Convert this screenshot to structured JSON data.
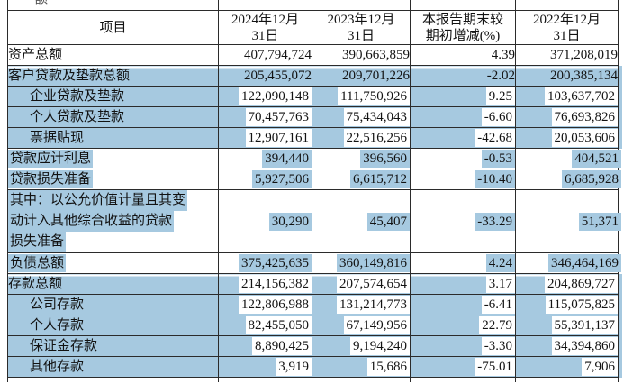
{
  "colors": {
    "highlight": "#a6c9e0",
    "border": "#2b2b2b",
    "text": "#121212"
  },
  "top_fragment": "额",
  "header": {
    "item_col": "项目",
    "col_2024": "2024年12月\n31日",
    "col_2023": "2023年12月\n31日",
    "col_change": "本报告期末较\n期初增减(%)",
    "col_2022": "2022年12月\n31日"
  },
  "table": {
    "rows": [
      {
        "label": "资产总额",
        "indent": 0,
        "style": "plain",
        "values": [
          "407,794,724",
          "390,663,859",
          "4.39",
          "371,208,019"
        ]
      },
      {
        "label": "客户贷款及垫款总额",
        "indent": 0,
        "style": "row-solid",
        "gap_top": true,
        "values": [
          "205,455,072",
          "209,701,226",
          "-2.02",
          "200,385,134"
        ]
      },
      {
        "label": "企业贷款及垫款",
        "indent": 1,
        "style": "row-whitebox",
        "values": [
          "122,090,148",
          "111,750,926",
          "9.25",
          "103,637,702"
        ]
      },
      {
        "label": "个人贷款及垫款",
        "indent": 1,
        "style": "row-whitebox",
        "values": [
          "70,457,763",
          "75,434,043",
          "-6.60",
          "76,693,826"
        ]
      },
      {
        "label": "票据贴现",
        "indent": 1,
        "style": "row-whitebox",
        "values": [
          "12,907,161",
          "22,516,256",
          "-42.68",
          "20,053,606"
        ]
      },
      {
        "label": "贷款应计利息",
        "indent": 0,
        "style": "span",
        "values": [
          "394,440",
          "396,560",
          "-0.53",
          "404,521"
        ]
      },
      {
        "label": "贷款损失准备",
        "indent": 0,
        "style": "span",
        "values": [
          "5,927,506",
          "6,615,712",
          "-10.40",
          "6,685,928"
        ]
      },
      {
        "label_lines": [
          "其中：以公允价值计量且其变",
          "动计入其他综合收益的贷款",
          "损失准备"
        ],
        "indent": 0,
        "style": "span",
        "tall": true,
        "values": [
          "30,290",
          "45,407",
          "-33.29",
          "51,371"
        ]
      },
      {
        "label": "负债总额",
        "indent": 0,
        "style": "span",
        "values": [
          "375,425,635",
          "360,149,816",
          "4.24",
          "346,464,169"
        ]
      },
      {
        "label": "存款总额",
        "indent": 0,
        "style": "row-whitebox",
        "gap_top": true,
        "values": [
          "214,156,382",
          "207,574,654",
          "3.17",
          "204,869,727"
        ]
      },
      {
        "label": "公司存款",
        "indent": 1,
        "style": "row-whitebox",
        "values": [
          "122,806,988",
          "131,214,773",
          "-6.41",
          "115,075,825"
        ]
      },
      {
        "label": "个人存款",
        "indent": 1,
        "style": "row-whitebox",
        "values": [
          "82,455,050",
          "67,149,956",
          "22.79",
          "55,391,137"
        ]
      },
      {
        "label": "保证金存款",
        "indent": 1,
        "style": "row-whitebox",
        "values": [
          "8,890,425",
          "9,194,240",
          "-3.30",
          "34,394,860"
        ]
      },
      {
        "label": "其他存款",
        "indent": 1,
        "style": "row-whitebox",
        "values": [
          "3,919",
          "15,686",
          "-75.01",
          "7,906"
        ]
      }
    ]
  }
}
